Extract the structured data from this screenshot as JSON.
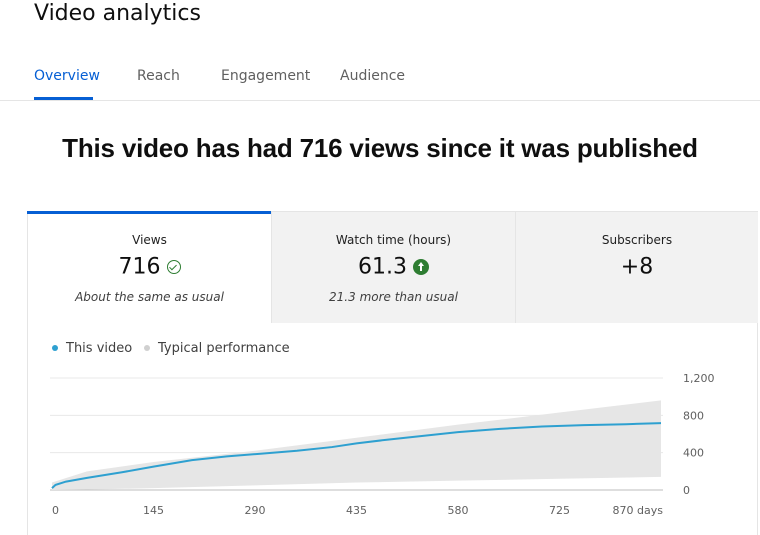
{
  "page": {
    "title": "Video analytics"
  },
  "tabs": [
    {
      "label": "Overview",
      "active": true
    },
    {
      "label": "Reach"
    },
    {
      "label": "Engagement"
    },
    {
      "label": "Audience"
    }
  ],
  "headline": "This video has had 716 views since it was published",
  "metrics": [
    {
      "label": "Views",
      "value": "716",
      "note": "About the same as usual",
      "icon": "check-circle-icon"
    },
    {
      "label": "Watch time (hours)",
      "value": "61.3",
      "note": "21.3 more than usual",
      "icon": "arrow-up-circle-icon"
    },
    {
      "label": "Subscribers",
      "value": "+8",
      "note": ""
    }
  ],
  "colors": {
    "accent": "#065fd4",
    "series": "#2ea0d0",
    "typical": "#e6e6e6",
    "positive": "#2e7d32"
  },
  "chart_data": {
    "type": "area",
    "legend": [
      "This video",
      "Typical performance"
    ],
    "x_ticks": [
      "0",
      "145",
      "290",
      "435",
      "580",
      "725",
      "870 days"
    ],
    "y_ticks": [
      "0",
      "400",
      "800",
      "1,200"
    ],
    "xlim": [
      0,
      870
    ],
    "ylim": [
      0,
      1200
    ],
    "series": [
      {
        "name": "This video",
        "x": [
          0,
          5,
          20,
          50,
          100,
          145,
          200,
          250,
          300,
          350,
          400,
          435,
          480,
          530,
          580,
          640,
          700,
          760,
          820,
          870
        ],
        "y": [
          20,
          55,
          90,
          130,
          190,
          250,
          320,
          360,
          390,
          420,
          460,
          500,
          540,
          580,
          620,
          655,
          680,
          695,
          705,
          716
        ]
      }
    ],
    "typical_band": {
      "x": [
        0,
        50,
        145,
        290,
        435,
        580,
        725,
        870
      ],
      "low": [
        0,
        5,
        20,
        50,
        80,
        100,
        120,
        140
      ],
      "high": [
        80,
        200,
        300,
        420,
        560,
        700,
        830,
        960
      ]
    }
  }
}
